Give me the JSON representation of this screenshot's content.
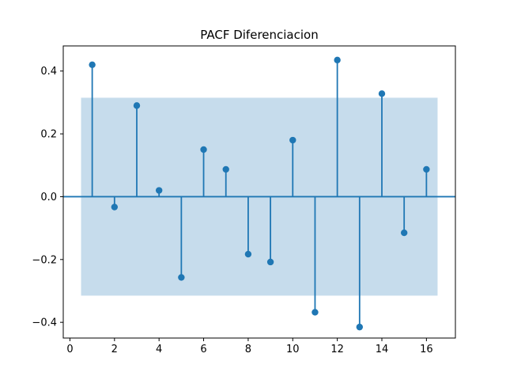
{
  "chart_data": {
    "type": "stem",
    "title": "PACF Diferenciacion",
    "xlabel": "",
    "ylabel": "",
    "xlim": [
      -0.3,
      17.3
    ],
    "ylim": [
      -0.45,
      0.48
    ],
    "x_ticks": [
      0,
      2,
      4,
      6,
      8,
      10,
      12,
      14,
      16
    ],
    "y_ticks": [
      -0.4,
      -0.2,
      0.0,
      0.2,
      0.4
    ],
    "x_tick_labels": [
      "0",
      "2",
      "4",
      "6",
      "8",
      "10",
      "12",
      "14",
      "16"
    ],
    "y_tick_labels": [
      "−0.4",
      "−0.2",
      "0.0",
      "0.2",
      "0.4"
    ],
    "confidence_band": {
      "x_range": [
        0.5,
        16.5
      ],
      "y_range": [
        -0.315,
        0.315
      ]
    },
    "x": [
      1,
      2,
      3,
      4,
      5,
      6,
      7,
      8,
      9,
      10,
      11,
      12,
      13,
      14,
      15,
      16
    ],
    "values": [
      0.42,
      -0.033,
      0.29,
      0.02,
      -0.257,
      0.15,
      0.087,
      -0.183,
      -0.208,
      0.18,
      -0.368,
      0.435,
      -0.415,
      0.328,
      -0.115,
      0.087
    ],
    "grid": false,
    "colors": {
      "stem": "#1f77b4",
      "band": "#c6dcec",
      "zero_line": "#1f77b4"
    }
  }
}
